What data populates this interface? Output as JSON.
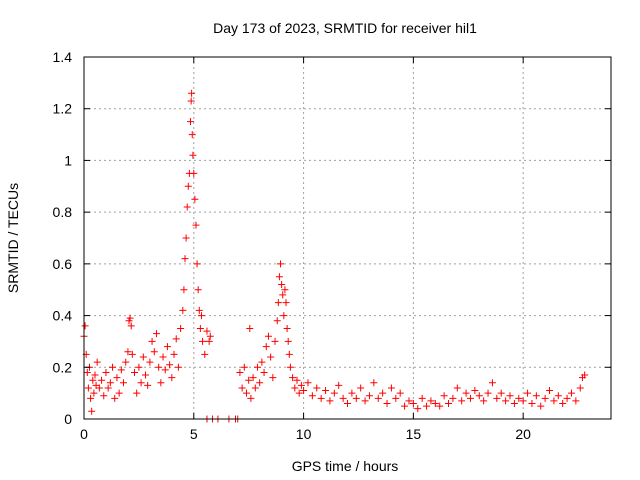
{
  "chart_data": {
    "type": "scatter",
    "title": "Day 173 of 2023, SRMTID for receiver hil1",
    "xlabel": "GPS time / hours",
    "ylabel": "SRMTID / TECUs",
    "xlim": [
      0,
      24
    ],
    "ylim": [
      0,
      1.4
    ],
    "xticks": [
      0,
      5,
      10,
      15,
      20
    ],
    "yticks": [
      0,
      0.2,
      0.4,
      0.6,
      0.8,
      1,
      1.2,
      1.4
    ],
    "xtick_labels": [
      "0",
      "5",
      "10",
      "15",
      "20"
    ],
    "ytick_labels": [
      "0",
      "0.2",
      "0.4",
      "0.6",
      "0.8",
      "1",
      "1.2",
      "1.4"
    ],
    "grid": true,
    "marker": "plus",
    "color": "#ff0000",
    "series": [
      {
        "name": "SRMTID",
        "points": [
          [
            0.0,
            0.32
          ],
          [
            0.05,
            0.36
          ],
          [
            0.1,
            0.25
          ],
          [
            0.15,
            0.18
          ],
          [
            0.2,
            0.12
          ],
          [
            0.25,
            0.2
          ],
          [
            0.3,
            0.08
          ],
          [
            0.35,
            0.03
          ],
          [
            0.4,
            0.15
          ],
          [
            0.45,
            0.1
          ],
          [
            0.5,
            0.17
          ],
          [
            0.55,
            0.13
          ],
          [
            0.6,
            0.22
          ],
          [
            0.7,
            0.12
          ],
          [
            0.8,
            0.15
          ],
          [
            0.9,
            0.09
          ],
          [
            1.0,
            0.18
          ],
          [
            1.1,
            0.12
          ],
          [
            1.2,
            0.14
          ],
          [
            1.3,
            0.2
          ],
          [
            1.4,
            0.08
          ],
          [
            1.5,
            0.16
          ],
          [
            1.6,
            0.1
          ],
          [
            1.7,
            0.19
          ],
          [
            1.8,
            0.14
          ],
          [
            1.9,
            0.22
          ],
          [
            2.0,
            0.26
          ],
          [
            2.05,
            0.38
          ],
          [
            2.1,
            0.39
          ],
          [
            2.15,
            0.36
          ],
          [
            2.2,
            0.25
          ],
          [
            2.3,
            0.18
          ],
          [
            2.4,
            0.1
          ],
          [
            2.5,
            0.2
          ],
          [
            2.6,
            0.14
          ],
          [
            2.7,
            0.24
          ],
          [
            2.8,
            0.17
          ],
          [
            2.9,
            0.13
          ],
          [
            3.0,
            0.22
          ],
          [
            3.1,
            0.3
          ],
          [
            3.2,
            0.26
          ],
          [
            3.3,
            0.33
          ],
          [
            3.4,
            0.2
          ],
          [
            3.5,
            0.14
          ],
          [
            3.6,
            0.24
          ],
          [
            3.7,
            0.19
          ],
          [
            3.8,
            0.28
          ],
          [
            3.9,
            0.21
          ],
          [
            4.0,
            0.16
          ],
          [
            4.1,
            0.25
          ],
          [
            4.2,
            0.31
          ],
          [
            4.3,
            0.2
          ],
          [
            4.4,
            0.35
          ],
          [
            4.5,
            0.42
          ],
          [
            4.55,
            0.5
          ],
          [
            4.6,
            0.62
          ],
          [
            4.65,
            0.7
          ],
          [
            4.7,
            0.82
          ],
          [
            4.75,
            0.9
          ],
          [
            4.8,
            0.95
          ],
          [
            4.85,
            1.15
          ],
          [
            4.88,
            1.23
          ],
          [
            4.9,
            1.26
          ],
          [
            4.93,
            1.1
          ],
          [
            4.96,
            1.02
          ],
          [
            5.0,
            0.95
          ],
          [
            5.05,
            0.85
          ],
          [
            5.1,
            0.75
          ],
          [
            5.15,
            0.6
          ],
          [
            5.2,
            0.5
          ],
          [
            5.25,
            0.42
          ],
          [
            5.3,
            0.35
          ],
          [
            5.35,
            0.4
          ],
          [
            5.4,
            0.3
          ],
          [
            5.5,
            0.25
          ],
          [
            5.6,
            0.34
          ],
          [
            5.7,
            0.3
          ],
          [
            5.75,
            0.32
          ],
          [
            5.6,
            0.0
          ],
          [
            5.85,
            0.0
          ],
          [
            6.1,
            0.0
          ],
          [
            6.6,
            0.0
          ],
          [
            6.9,
            0.0
          ],
          [
            7.0,
            0.0
          ],
          [
            7.1,
            0.18
          ],
          [
            7.2,
            0.12
          ],
          [
            7.3,
            0.2
          ],
          [
            7.4,
            0.1
          ],
          [
            7.5,
            0.15
          ],
          [
            7.55,
            0.35
          ],
          [
            7.6,
            0.08
          ],
          [
            7.7,
            0.16
          ],
          [
            7.8,
            0.12
          ],
          [
            7.9,
            0.2
          ],
          [
            8.0,
            0.14
          ],
          [
            8.1,
            0.22
          ],
          [
            8.2,
            0.18
          ],
          [
            8.3,
            0.28
          ],
          [
            8.4,
            0.32
          ],
          [
            8.5,
            0.24
          ],
          [
            8.6,
            0.16
          ],
          [
            8.7,
            0.3
          ],
          [
            8.8,
            0.38
          ],
          [
            8.85,
            0.45
          ],
          [
            8.9,
            0.55
          ],
          [
            8.95,
            0.6
          ],
          [
            9.0,
            0.52
          ],
          [
            9.05,
            0.48
          ],
          [
            9.1,
            0.4
          ],
          [
            9.15,
            0.5
          ],
          [
            9.2,
            0.45
          ],
          [
            9.25,
            0.35
          ],
          [
            9.3,
            0.3
          ],
          [
            9.35,
            0.25
          ],
          [
            9.4,
            0.2
          ],
          [
            9.5,
            0.16
          ],
          [
            9.6,
            0.12
          ],
          [
            9.7,
            0.15
          ],
          [
            9.8,
            0.1
          ],
          [
            9.9,
            0.13
          ],
          [
            10.0,
            0.11
          ],
          [
            10.2,
            0.14
          ],
          [
            10.4,
            0.09
          ],
          [
            10.6,
            0.12
          ],
          [
            10.8,
            0.08
          ],
          [
            11.0,
            0.11
          ],
          [
            11.2,
            0.07
          ],
          [
            11.4,
            0.1
          ],
          [
            11.6,
            0.13
          ],
          [
            11.8,
            0.08
          ],
          [
            12.0,
            0.06
          ],
          [
            12.2,
            0.1
          ],
          [
            12.4,
            0.08
          ],
          [
            12.6,
            0.12
          ],
          [
            12.8,
            0.07
          ],
          [
            13.0,
            0.09
          ],
          [
            13.2,
            0.14
          ],
          [
            13.4,
            0.08
          ],
          [
            13.6,
            0.1
          ],
          [
            13.8,
            0.06
          ],
          [
            14.0,
            0.12
          ],
          [
            14.2,
            0.08
          ],
          [
            14.4,
            0.1
          ],
          [
            14.6,
            0.05
          ],
          [
            14.8,
            0.07
          ],
          [
            15.0,
            0.06
          ],
          [
            15.2,
            0.04
          ],
          [
            15.4,
            0.08
          ],
          [
            15.6,
            0.05
          ],
          [
            15.8,
            0.07
          ],
          [
            16.0,
            0.06
          ],
          [
            16.2,
            0.05
          ],
          [
            16.4,
            0.09
          ],
          [
            16.6,
            0.06
          ],
          [
            16.8,
            0.08
          ],
          [
            17.0,
            0.12
          ],
          [
            17.2,
            0.07
          ],
          [
            17.4,
            0.1
          ],
          [
            17.6,
            0.08
          ],
          [
            17.8,
            0.11
          ],
          [
            18.0,
            0.09
          ],
          [
            18.2,
            0.07
          ],
          [
            18.4,
            0.1
          ],
          [
            18.6,
            0.14
          ],
          [
            18.8,
            0.08
          ],
          [
            19.0,
            0.1
          ],
          [
            19.2,
            0.07
          ],
          [
            19.4,
            0.09
          ],
          [
            19.6,
            0.06
          ],
          [
            19.8,
            0.08
          ],
          [
            20.0,
            0.07
          ],
          [
            20.2,
            0.1
          ],
          [
            20.4,
            0.06
          ],
          [
            20.6,
            0.09
          ],
          [
            20.8,
            0.05
          ],
          [
            21.0,
            0.08
          ],
          [
            21.2,
            0.11
          ],
          [
            21.4,
            0.07
          ],
          [
            21.6,
            0.09
          ],
          [
            21.8,
            0.06
          ],
          [
            22.0,
            0.08
          ],
          [
            22.2,
            0.1
          ],
          [
            22.4,
            0.07
          ],
          [
            22.6,
            0.12
          ],
          [
            22.7,
            0.16
          ],
          [
            22.8,
            0.17
          ]
        ]
      }
    ]
  }
}
